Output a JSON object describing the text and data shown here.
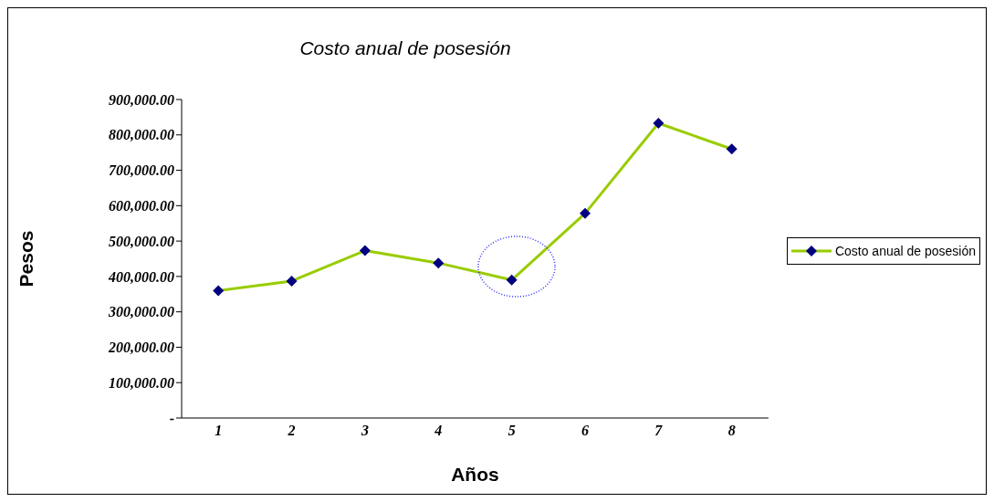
{
  "chart_data": {
    "type": "line",
    "title": "Costo anual de posesión",
    "xlabel": "Años",
    "ylabel": "Pesos",
    "categories": [
      "1",
      "2",
      "3",
      "4",
      "5",
      "6",
      "7",
      "8"
    ],
    "series": [
      {
        "name": "Costo anual de posesión",
        "color": "#99cc00",
        "values": [
          360000,
          387000,
          473000,
          438000,
          390000,
          578000,
          833000,
          760000
        ],
        "colors": [
          "#000080",
          "#000080",
          "#000080",
          "#000080",
          "#000080",
          "#000080",
          "#000080",
          "#000080"
        ]
      }
    ],
    "ylim": [
      0,
      900000
    ],
    "yticks": [
      {
        "value": 0,
        "label": "-"
      },
      {
        "value": 100000,
        "label": "100,000.00"
      },
      {
        "value": 200000,
        "label": "200,000.00"
      },
      {
        "value": 300000,
        "label": "300,000.00"
      },
      {
        "value": 400000,
        "label": "400,000.00"
      },
      {
        "value": 500000,
        "label": "500,000.00"
      },
      {
        "value": 600000,
        "label": "600,000.00"
      },
      {
        "value": 700000,
        "label": "700,000.00"
      },
      {
        "value": 800000,
        "label": "800,000.00"
      },
      {
        "value": 900000,
        "label": "900,000.00"
      }
    ],
    "grid": false,
    "legend": "right",
    "marker": "diamond",
    "line_style": "solid"
  }
}
